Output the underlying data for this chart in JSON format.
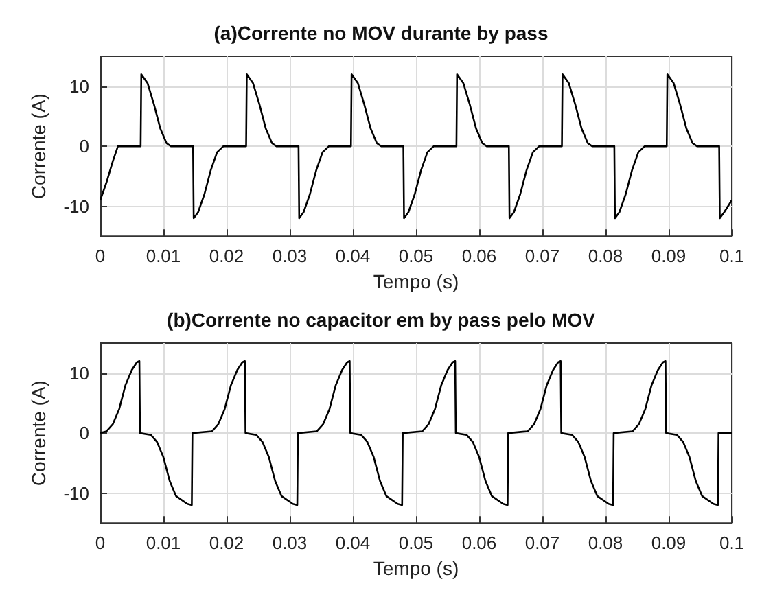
{
  "chart_data": [
    {
      "type": "line",
      "title": "(a)Corrente no MOV durante by pass",
      "xlabel": "Tempo (s)",
      "ylabel": "Corrente (A)",
      "xlim": [
        0,
        0.1
      ],
      "xticks": [
        0,
        0.01,
        0.02,
        0.03,
        0.04,
        0.05,
        0.06,
        0.07,
        0.08,
        0.09,
        0.1
      ],
      "ylim": [
        -15,
        15
      ],
      "yticks": [
        -10,
        0,
        10
      ],
      "grid": true,
      "marker": "none",
      "line_style": "solid",
      "x": [
        0,
        0.001,
        0.002,
        0.0028,
        0.0064,
        0.0065,
        0.0075,
        0.0085,
        0.0095,
        0.0105,
        0.0112,
        0.0147,
        0.0148,
        0.0155,
        0.0165,
        0.0175,
        0.0185,
        0.0195,
        0.0231,
        0.0232,
        0.0242,
        0.0252,
        0.0262,
        0.0272,
        0.0279,
        0.0314,
        0.0315,
        0.0322,
        0.0332,
        0.0342,
        0.0352,
        0.0362,
        0.0397,
        0.0398,
        0.0408,
        0.0418,
        0.0428,
        0.0438,
        0.0445,
        0.048,
        0.0481,
        0.0488,
        0.0498,
        0.0508,
        0.0518,
        0.0528,
        0.0564,
        0.0565,
        0.0575,
        0.0585,
        0.0595,
        0.0605,
        0.0612,
        0.0647,
        0.0648,
        0.0655,
        0.0665,
        0.0675,
        0.0685,
        0.0695,
        0.0731,
        0.0732,
        0.0742,
        0.0752,
        0.0762,
        0.0772,
        0.0779,
        0.0814,
        0.0815,
        0.0822,
        0.0832,
        0.0842,
        0.0852,
        0.0862,
        0.0897,
        0.0898,
        0.0908,
        0.0918,
        0.0928,
        0.0938,
        0.0945,
        0.098,
        0.0981,
        0.0988,
        0.1
      ],
      "series": [
        {
          "color": "#000000",
          "values": [
            -9,
            -6,
            -2.5,
            0,
            0,
            12,
            10.5,
            7,
            3,
            0.5,
            0,
            0,
            -12,
            -11,
            -8,
            -4,
            -1,
            0,
            0,
            12,
            10.5,
            7,
            3,
            0.5,
            0,
            0,
            -12,
            -11,
            -8,
            -4,
            -1,
            0,
            0,
            12,
            10.5,
            7,
            3,
            0.5,
            0,
            0,
            -12,
            -11,
            -8,
            -4,
            -1,
            0,
            0,
            12,
            10.5,
            7,
            3,
            0.5,
            0,
            0,
            -12,
            -11,
            -8,
            -4,
            -1,
            0,
            0,
            12,
            10.5,
            7,
            3,
            0.5,
            0,
            0,
            -12,
            -11,
            -8,
            -4,
            -1,
            0,
            0,
            12,
            10.5,
            7,
            3,
            0.5,
            0,
            0,
            -12,
            -11,
            -9
          ]
        }
      ]
    },
    {
      "type": "line",
      "title": "(b)Corrente no capacitor em by pass pelo MOV",
      "xlabel": "Tempo (s)",
      "ylabel": "Corrente (A)",
      "xlim": [
        0,
        0.1
      ],
      "xticks": [
        0,
        0.01,
        0.02,
        0.03,
        0.04,
        0.05,
        0.06,
        0.07,
        0.08,
        0.09,
        0.1
      ],
      "ylim": [
        -15,
        15
      ],
      "yticks": [
        -10,
        0,
        10
      ],
      "grid": true,
      "marker": "none",
      "line_style": "solid",
      "x": [
        0,
        0.001,
        0.002,
        0.003,
        0.004,
        0.005,
        0.0058,
        0.0062,
        0.0063,
        0.008,
        0.009,
        0.01,
        0.011,
        0.012,
        0.0138,
        0.0145,
        0.0146,
        0.0177,
        0.0187,
        0.0197,
        0.0207,
        0.0217,
        0.0225,
        0.0229,
        0.023,
        0.0247,
        0.0257,
        0.0267,
        0.0277,
        0.0287,
        0.0305,
        0.0312,
        0.0313,
        0.0343,
        0.0353,
        0.0363,
        0.0373,
        0.0383,
        0.0391,
        0.0395,
        0.0396,
        0.0413,
        0.0423,
        0.0433,
        0.0443,
        0.0453,
        0.0471,
        0.0478,
        0.0479,
        0.051,
        0.052,
        0.053,
        0.054,
        0.055,
        0.0558,
        0.0562,
        0.0563,
        0.058,
        0.059,
        0.06,
        0.061,
        0.062,
        0.0638,
        0.0645,
        0.0646,
        0.0677,
        0.0687,
        0.0697,
        0.0707,
        0.0717,
        0.0725,
        0.0729,
        0.073,
        0.0747,
        0.0757,
        0.0767,
        0.0777,
        0.0787,
        0.0805,
        0.0812,
        0.0813,
        0.0843,
        0.0853,
        0.0863,
        0.0873,
        0.0883,
        0.0891,
        0.0895,
        0.0896,
        0.0913,
        0.0923,
        0.0933,
        0.0943,
        0.0953,
        0.0971,
        0.0978,
        0.0979,
        0.1
      ],
      "series": [
        {
          "color": "#000000",
          "values": [
            0,
            0.3,
            1.5,
            4,
            8,
            10.5,
            11.8,
            12,
            0,
            -0.3,
            -1.5,
            -4,
            -8,
            -10.5,
            -11.8,
            -12,
            0,
            0.3,
            1.5,
            4,
            8,
            10.5,
            11.8,
            12,
            0,
            -0.3,
            -1.5,
            -4,
            -8,
            -10.5,
            -11.8,
            -12,
            0,
            0.3,
            1.5,
            4,
            8,
            10.5,
            11.8,
            12,
            0,
            -0.3,
            -1.5,
            -4,
            -8,
            -10.5,
            -11.8,
            -12,
            0,
            0.3,
            1.5,
            4,
            8,
            10.5,
            11.8,
            12,
            0,
            -0.3,
            -1.5,
            -4,
            -8,
            -10.5,
            -11.8,
            -12,
            0,
            0.3,
            1.5,
            4,
            8,
            10.5,
            11.8,
            12,
            0,
            -0.3,
            -1.5,
            -4,
            -8,
            -10.5,
            -11.8,
            -12,
            0,
            0.3,
            1.5,
            4,
            8,
            10.5,
            11.8,
            12,
            0,
            -0.3,
            -1.5,
            -4,
            -8,
            -10.5,
            -11.8,
            -12,
            0,
            0
          ]
        }
      ]
    }
  ]
}
